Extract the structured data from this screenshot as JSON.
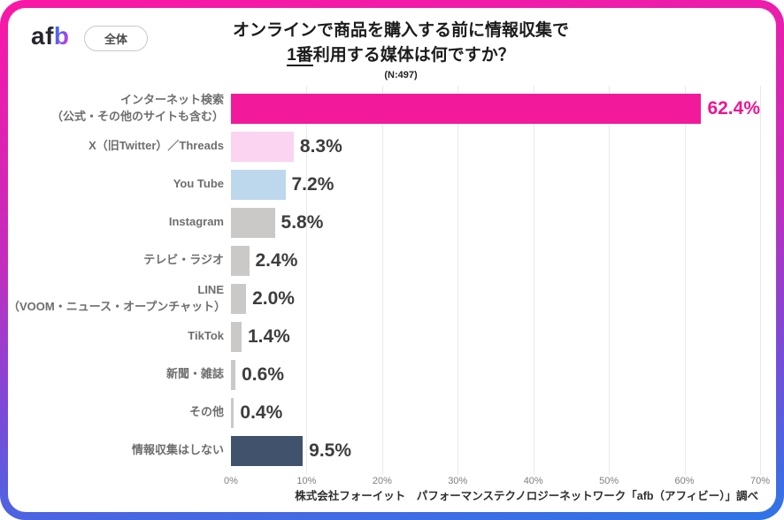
{
  "header": {
    "logo_af": "af",
    "logo_b": "b",
    "badge": "全体",
    "title_line1": "オンラインで商品を購入する前に情報収集で",
    "title_line2_underlined": "1番",
    "title_line2_rest": "利用する媒体は何ですか？",
    "sample": "(N:497)"
  },
  "chart_data": {
    "type": "bar",
    "orientation": "horizontal",
    "title": "オンラインで商品を購入する前に情報収集で1番利用する媒体は何ですか？",
    "sample_size": "(N:497)",
    "xlim": [
      0,
      70
    ],
    "x_ticks": [
      "0%",
      "10%",
      "20%",
      "30%",
      "40%",
      "50%",
      "60%",
      "70%"
    ],
    "grid": true,
    "bars": [
      {
        "label_lines": [
          "インターネット検索",
          "（公式・その他のサイトも含む）"
        ],
        "value": 62.4,
        "value_label": "62.4%",
        "color": "#f2199a",
        "value_color": "#ec1691"
      },
      {
        "label_lines": [
          "X（旧Twitter）／Threads"
        ],
        "value": 8.3,
        "value_label": "8.3%",
        "color": "#fad4f0",
        "value_color": "#3d3d3d"
      },
      {
        "label_lines": [
          "You Tube"
        ],
        "value": 7.2,
        "value_label": "7.2%",
        "color": "#bdd7ed",
        "value_color": "#3d3d3d"
      },
      {
        "label_lines": [
          "Instagram"
        ],
        "value": 5.8,
        "value_label": "5.8%",
        "color": "#cbc8c8",
        "value_color": "#3d3d3d"
      },
      {
        "label_lines": [
          "テレビ・ラジオ"
        ],
        "value": 2.4,
        "value_label": "2.4%",
        "color": "#cbc8c8",
        "value_color": "#3d3d3d"
      },
      {
        "label_lines": [
          "LINE",
          "（VOOM・ニュース・オープンチャット）"
        ],
        "value": 2.0,
        "value_label": "2.0%",
        "color": "#cbc8c8",
        "value_color": "#3d3d3d"
      },
      {
        "label_lines": [
          "TikTok"
        ],
        "value": 1.4,
        "value_label": "1.4%",
        "color": "#cbc8c8",
        "value_color": "#3d3d3d"
      },
      {
        "label_lines": [
          "新聞・雑誌"
        ],
        "value": 0.6,
        "value_label": "0.6%",
        "color": "#cbc8c8",
        "value_color": "#3d3d3d"
      },
      {
        "label_lines": [
          "その他"
        ],
        "value": 0.4,
        "value_label": "0.4%",
        "color": "#cbc8c8",
        "value_color": "#3d3d3d"
      },
      {
        "label_lines": [
          "情報収集はしない"
        ],
        "value": 9.5,
        "value_label": "9.5%",
        "color": "#41536c",
        "value_color": "#3d3d3d"
      }
    ]
  },
  "footer": {
    "source": "株式会社フォーイット　パフォーマンステクノロジーネットワーク「afb（アフィビー）」調べ"
  }
}
